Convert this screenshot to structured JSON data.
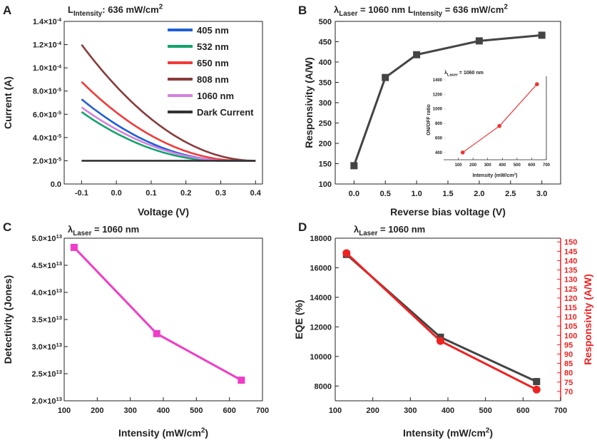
{
  "chart_data": [
    {
      "panel": "A",
      "type": "line",
      "title_main": "L",
      "title_sub": "Intensity",
      "title_rest": ": 636 mW/cm",
      "title_sup": "2",
      "xlabel": "Voltage (V)",
      "ylabel": "Current (A)",
      "xlim": [
        -0.15,
        0.42
      ],
      "ylim": [
        0,
        0.00014
      ],
      "xticks": [
        "-0.1",
        "0.0",
        "0.1",
        "0.2",
        "0.3",
        "0.4"
      ],
      "xtick_values": [
        -0.1,
        0.0,
        0.1,
        0.2,
        0.3,
        0.4
      ],
      "ytick_values": [
        0,
        2e-05,
        4e-05,
        6e-05,
        8e-05,
        0.0001,
        0.00012,
        0.00014
      ],
      "yticks": [
        {
          "m": "0.0",
          "e": ""
        },
        {
          "m": "2.0×10",
          "e": "-5"
        },
        {
          "m": "4.0×10",
          "e": "-5"
        },
        {
          "m": "6.0×10",
          "e": "-5"
        },
        {
          "m": "8.0×10",
          "e": "-5"
        },
        {
          "m": "1.0×10",
          "e": "-4"
        },
        {
          "m": "1.2×10",
          "e": "-4"
        },
        {
          "m": "1.4×10",
          "e": "-4"
        }
      ],
      "dark_level": 2e-05,
      "end_voltage": 0.4,
      "series": [
        {
          "name": "405 nm",
          "color": "#1f5fd6",
          "start": 7.3e-05,
          "flat_at": 0.33
        },
        {
          "name": "532 nm",
          "color": "#12a36c",
          "start": 6.2e-05,
          "flat_at": 0.3
        },
        {
          "name": "650 nm",
          "color": "#f23a3a",
          "start": 8.8e-05,
          "flat_at": 0.36
        },
        {
          "name": "808 nm",
          "color": "#8a3b3b",
          "start": 0.00012,
          "flat_at": 0.4
        },
        {
          "name": "1060 nm",
          "color": "#d281e0",
          "start": 6.6e-05,
          "flat_at": 0.33
        },
        {
          "name": "Dark Current",
          "color": "#333333",
          "start": 2e-05,
          "flat_at": -0.1
        }
      ]
    },
    {
      "panel": "B",
      "type": "line",
      "title_lambda": "λ",
      "title_sub1": "Laser",
      "title_mid": " = 1060 nm L",
      "title_sub2": "Intensity",
      "title_rest": " = 636 mW/cm",
      "title_sup": "2",
      "xlabel": "Reverse bias voltage (V)",
      "ylabel": "Responsivity (A/W)",
      "xlim": [
        -0.3,
        3.3
      ],
      "ylim": [
        100,
        500
      ],
      "xticks": [
        "0.0",
        "0.5",
        "1.0",
        "1.5",
        "2.0",
        "2.5",
        "3.0"
      ],
      "xtick_values": [
        0,
        0.5,
        1.0,
        1.5,
        2.0,
        2.5,
        3.0
      ],
      "yticks": [
        "100",
        "150",
        "200",
        "250",
        "300",
        "350",
        "400",
        "450",
        "500"
      ],
      "ytick_values": [
        100,
        150,
        200,
        250,
        300,
        350,
        400,
        450,
        500
      ],
      "color": "#444444",
      "x": [
        0,
        0.5,
        1.0,
        2.0,
        3.0
      ],
      "y": [
        145,
        362,
        418,
        452,
        466
      ],
      "inset": {
        "type": "line",
        "title_lambda": "λ",
        "title_sub": "Laser",
        "title_rest": " = 1060 nm",
        "xlabel": "Intensity (mW/cm",
        "xlabel_sup": "2",
        "xlabel_end": ")",
        "ylabel": "ON/OFF ratio",
        "xlim": [
          0,
          700
        ],
        "ylim": [
          300,
          1400
        ],
        "xticks": [
          "100",
          "200",
          "300",
          "400",
          "500",
          "600",
          "700"
        ],
        "xtick_values": [
          100,
          200,
          300,
          400,
          500,
          600,
          700
        ],
        "yticks": [
          "400",
          "600",
          "800",
          "1000",
          "1200",
          "1400"
        ],
        "ytick_values": [
          400,
          600,
          800,
          1000,
          1200,
          1400
        ],
        "color": "#ee3333",
        "x": [
          130,
          380,
          636
        ],
        "y": [
          400,
          765,
          1340
        ]
      }
    },
    {
      "panel": "C",
      "type": "line",
      "title_lambda": "λ",
      "title_sub": "Laser",
      "title_rest": " = 1060 nm",
      "xlabel": "Intensity (mW/cm",
      "xlabel_sup": "2",
      "xlabel_end": ")",
      "ylabel": "Detectivity (Jones)",
      "xlim": [
        100,
        700
      ],
      "ylim": [
        20000000000000.0,
        50000000000000.0
      ],
      "xticks": [
        "100",
        "200",
        "300",
        "400",
        "500",
        "600",
        "700"
      ],
      "xtick_values": [
        100,
        200,
        300,
        400,
        500,
        600,
        700
      ],
      "ytick_values": [
        20000000000000.0,
        25000000000000.0,
        30000000000000.0,
        35000000000000.0,
        40000000000000.0,
        45000000000000.0,
        50000000000000.0
      ],
      "yticks": [
        {
          "m": "2.0×10",
          "e": "13"
        },
        {
          "m": "2.5×10",
          "e": "13"
        },
        {
          "m": "3.0×10",
          "e": "13"
        },
        {
          "m": "3.5×10",
          "e": "13"
        },
        {
          "m": "4.0×10",
          "e": "13"
        },
        {
          "m": "4.5×10",
          "e": "13"
        },
        {
          "m": "5.0×10",
          "e": "13"
        }
      ],
      "color": "#f03cc8",
      "x": [
        130,
        380,
        636
      ],
      "y": [
        48300000000000.0,
        32400000000000.0,
        23800000000000.0
      ]
    },
    {
      "panel": "D",
      "type": "line",
      "title_lambda": "λ",
      "title_sub": "Laser",
      "title_rest": " = 1060 nm",
      "xlabel": "Intensity (mW/cm",
      "xlabel_sup": "2",
      "xlabel_end": ")",
      "ylabel": "EQE (%)",
      "y2label": "Responsivity (A/W)",
      "xlim": [
        100,
        700
      ],
      "ylim": [
        7000,
        18000
      ],
      "y2lim": [
        65,
        152
      ],
      "xticks": [
        "100",
        "200",
        "300",
        "400",
        "500",
        "600",
        "700"
      ],
      "xtick_values": [
        100,
        200,
        300,
        400,
        500,
        600,
        700
      ],
      "yticks": [
        "8000",
        "10000",
        "12000",
        "14000",
        "16000",
        "18000"
      ],
      "ytick_values": [
        8000,
        10000,
        12000,
        14000,
        16000,
        18000
      ],
      "y2ticks": [
        "70",
        "75",
        "80",
        "85",
        "90",
        "95",
        "100",
        "105",
        "110",
        "115",
        "120",
        "125",
        "130",
        "135",
        "140",
        "145",
        "150"
      ],
      "y2tick_values": [
        70,
        75,
        80,
        85,
        90,
        95,
        100,
        105,
        110,
        115,
        120,
        125,
        130,
        135,
        140,
        145,
        150
      ],
      "axis2_color": "#ee2222",
      "series": [
        {
          "name": "EQE",
          "color": "#444444",
          "marker": "square",
          "axis": "left",
          "x": [
            130,
            380,
            636
          ],
          "y": [
            16900,
            11300,
            8300
          ]
        },
        {
          "name": "Responsivity",
          "color": "#ee2222",
          "marker": "circle",
          "axis": "right",
          "x": [
            130,
            380,
            636
          ],
          "y": [
            144,
            97,
            71
          ]
        }
      ]
    }
  ],
  "panels": {
    "a": "A",
    "b": "B",
    "c": "C",
    "d": "D"
  }
}
